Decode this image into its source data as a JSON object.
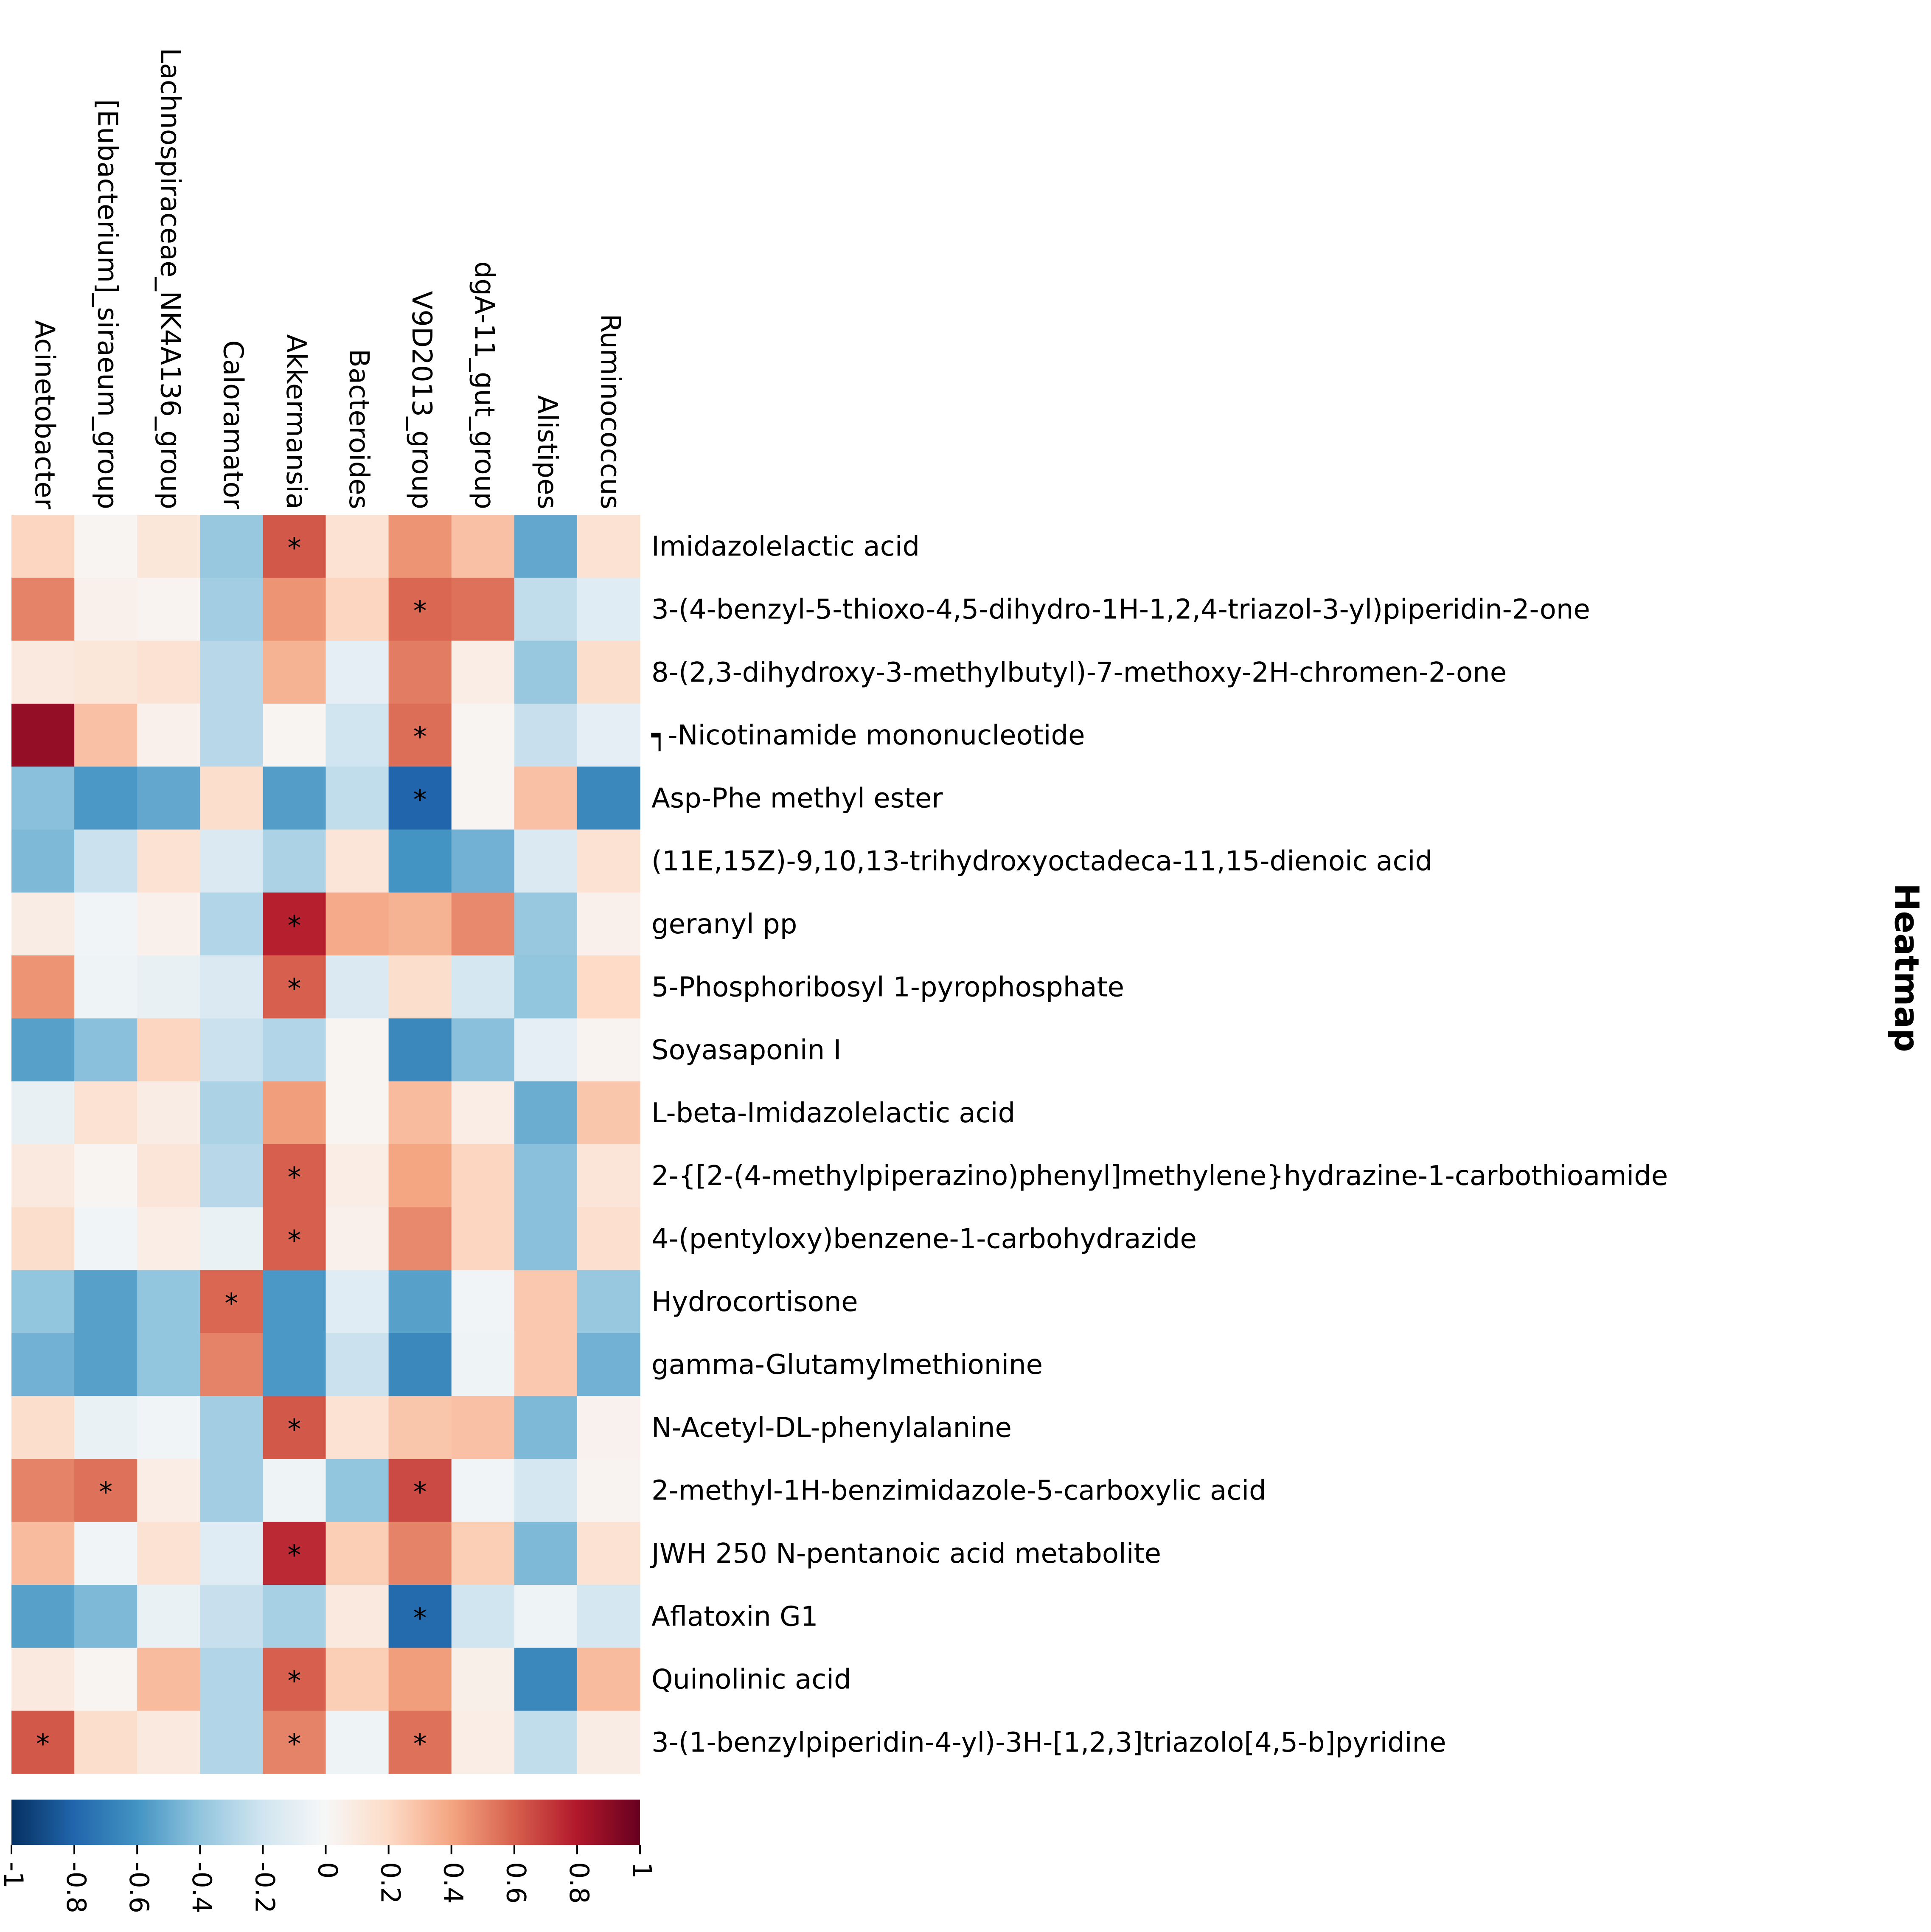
{
  "chart_data": {
    "type": "heatmap",
    "title": "Heatmap",
    "columns": [
      "Acinetobacter",
      "[Eubacterium]_siraeum_group",
      "Lachnospiraceae_NK4A136_group",
      "Caloramator",
      "Akkermansia",
      "Bacteroides",
      "V9D2013_group",
      "dgA-11_gut_group",
      "Alistipes",
      "Ruminococcus"
    ],
    "rows": [
      "Imidazolelactic acid",
      "3-(4-benzyl-5-thioxo-4,5-dihydro-1H-1,2,4-triazol-3-yl)piperidin-2-one",
      "8-(2,3-dihydroxy-3-methylbutyl)-7-methoxy-2H-chromen-2-one",
      "┑-Nicotinamide mononucleotide",
      "Asp-Phe methyl ester",
      "(11E,15Z)-9,10,13-trihydroxyoctadeca-11,15-dienoic acid",
      "geranyl pp",
      "5-Phosphoribosyl 1-pyrophosphate",
      "Soyasaponin I",
      "L-beta-Imidazolelactic acid",
      "2-{[2-(4-methylpiperazino)phenyl]methylene}hydrazine-1-carbothioamide",
      "4-(pentyloxy)benzene-1-carbohydrazide",
      "Hydrocortisone",
      "gamma-Glutamylmethionine",
      "N-Acetyl-DL-phenylalanine",
      "2-methyl-1H-benzimidazole-5-carboxylic acid",
      "JWH 250 N-pentanoic acid metabolite",
      "Aflatoxin G1",
      "Quinolinic acid",
      "3-(1-benzylpiperidin-4-yl)-3H-[1,2,3]triazolo[4,5-b]pyridine"
    ],
    "values": [
      [
        0.22,
        0.02,
        0.12,
        -0.38,
        0.62,
        0.15,
        0.45,
        0.3,
        -0.52,
        0.15
      ],
      [
        0.5,
        0.05,
        0.03,
        -0.35,
        0.45,
        0.22,
        0.58,
        0.55,
        -0.25,
        -0.12
      ],
      [
        0.1,
        0.12,
        0.15,
        -0.28,
        0.35,
        -0.1,
        0.52,
        0.07,
        -0.38,
        0.18
      ],
      [
        0.88,
        0.3,
        0.05,
        -0.28,
        0.02,
        -0.2,
        0.56,
        0.02,
        -0.23,
        -0.1
      ],
      [
        -0.42,
        -0.58,
        -0.52,
        0.18,
        -0.56,
        -0.25,
        -0.8,
        0.02,
        0.3,
        -0.65
      ],
      [
        -0.45,
        -0.22,
        0.15,
        -0.15,
        -0.32,
        0.13,
        -0.6,
        -0.48,
        -0.15,
        0.15
      ],
      [
        0.08,
        -0.03,
        0.05,
        -0.3,
        0.78,
        0.38,
        0.35,
        0.48,
        -0.38,
        0.05
      ],
      [
        0.45,
        -0.05,
        -0.08,
        -0.15,
        0.6,
        -0.15,
        0.18,
        -0.18,
        -0.4,
        0.2
      ],
      [
        -0.55,
        -0.42,
        0.22,
        -0.22,
        -0.3,
        0.02,
        -0.65,
        -0.42,
        -0.1,
        0.03
      ],
      [
        -0.08,
        0.15,
        0.08,
        -0.32,
        0.42,
        0.02,
        0.32,
        0.07,
        -0.5,
        0.28
      ],
      [
        0.1,
        0.02,
        0.13,
        -0.28,
        0.6,
        0.07,
        0.4,
        0.22,
        -0.42,
        0.13
      ],
      [
        0.18,
        -0.03,
        0.07,
        -0.07,
        0.6,
        0.05,
        0.48,
        0.22,
        -0.42,
        0.17
      ],
      [
        -0.4,
        -0.55,
        -0.4,
        0.58,
        -0.58,
        -0.12,
        -0.55,
        -0.03,
        0.27,
        -0.38
      ],
      [
        -0.48,
        -0.55,
        -0.4,
        0.5,
        -0.58,
        -0.22,
        -0.65,
        -0.05,
        0.27,
        -0.48
      ],
      [
        0.18,
        -0.07,
        -0.03,
        -0.35,
        0.62,
        0.15,
        0.28,
        0.3,
        -0.45,
        0.04
      ],
      [
        0.5,
        0.55,
        0.07,
        -0.35,
        -0.05,
        -0.4,
        0.66,
        -0.03,
        -0.18,
        0.03
      ],
      [
        0.32,
        -0.03,
        0.15,
        -0.12,
        0.75,
        0.25,
        0.5,
        0.25,
        -0.45,
        0.15
      ],
      [
        -0.55,
        -0.45,
        -0.07,
        -0.23,
        -0.33,
        0.1,
        -0.78,
        -0.2,
        -0.05,
        -0.18
      ],
      [
        0.1,
        0.02,
        0.32,
        -0.3,
        0.6,
        0.25,
        0.42,
        0.06,
        -0.65,
        0.32
      ],
      [
        0.62,
        0.18,
        0.1,
        -0.3,
        0.5,
        -0.05,
        0.55,
        0.07,
        -0.25,
        0.08
      ]
    ],
    "significance_marker": "*",
    "significant": [
      [
        0,
        4
      ],
      [
        1,
        6
      ],
      [
        3,
        6
      ],
      [
        4,
        6
      ],
      [
        6,
        4
      ],
      [
        7,
        4
      ],
      [
        10,
        4
      ],
      [
        11,
        4
      ],
      [
        12,
        3
      ],
      [
        14,
        4
      ],
      [
        15,
        1
      ],
      [
        15,
        6
      ],
      [
        16,
        4
      ],
      [
        17,
        6
      ],
      [
        18,
        4
      ],
      [
        19,
        0
      ],
      [
        19,
        4
      ],
      [
        19,
        6
      ]
    ],
    "colorbar": {
      "min": -1,
      "max": 1,
      "orientation": "horizontal",
      "placement": "bottom",
      "ticks": [
        -1,
        -0.8,
        -0.6,
        -0.4,
        -0.2,
        0,
        0.2,
        0.4,
        0.6,
        0.8,
        1
      ],
      "tick_labels": [
        "-1",
        "-0.8",
        "-0.6",
        "-0.4",
        "-0.2",
        "0",
        "0.2",
        "0.4",
        "0.6",
        "0.8",
        "1"
      ],
      "colormap": "RdBu_r",
      "stops": [
        "#053061",
        "#2166ac",
        "#4393c3",
        "#92c5de",
        "#d1e5f0",
        "#f7f7f7",
        "#fddbc7",
        "#f4a582",
        "#d6604d",
        "#b2182b",
        "#67001f"
      ]
    }
  }
}
